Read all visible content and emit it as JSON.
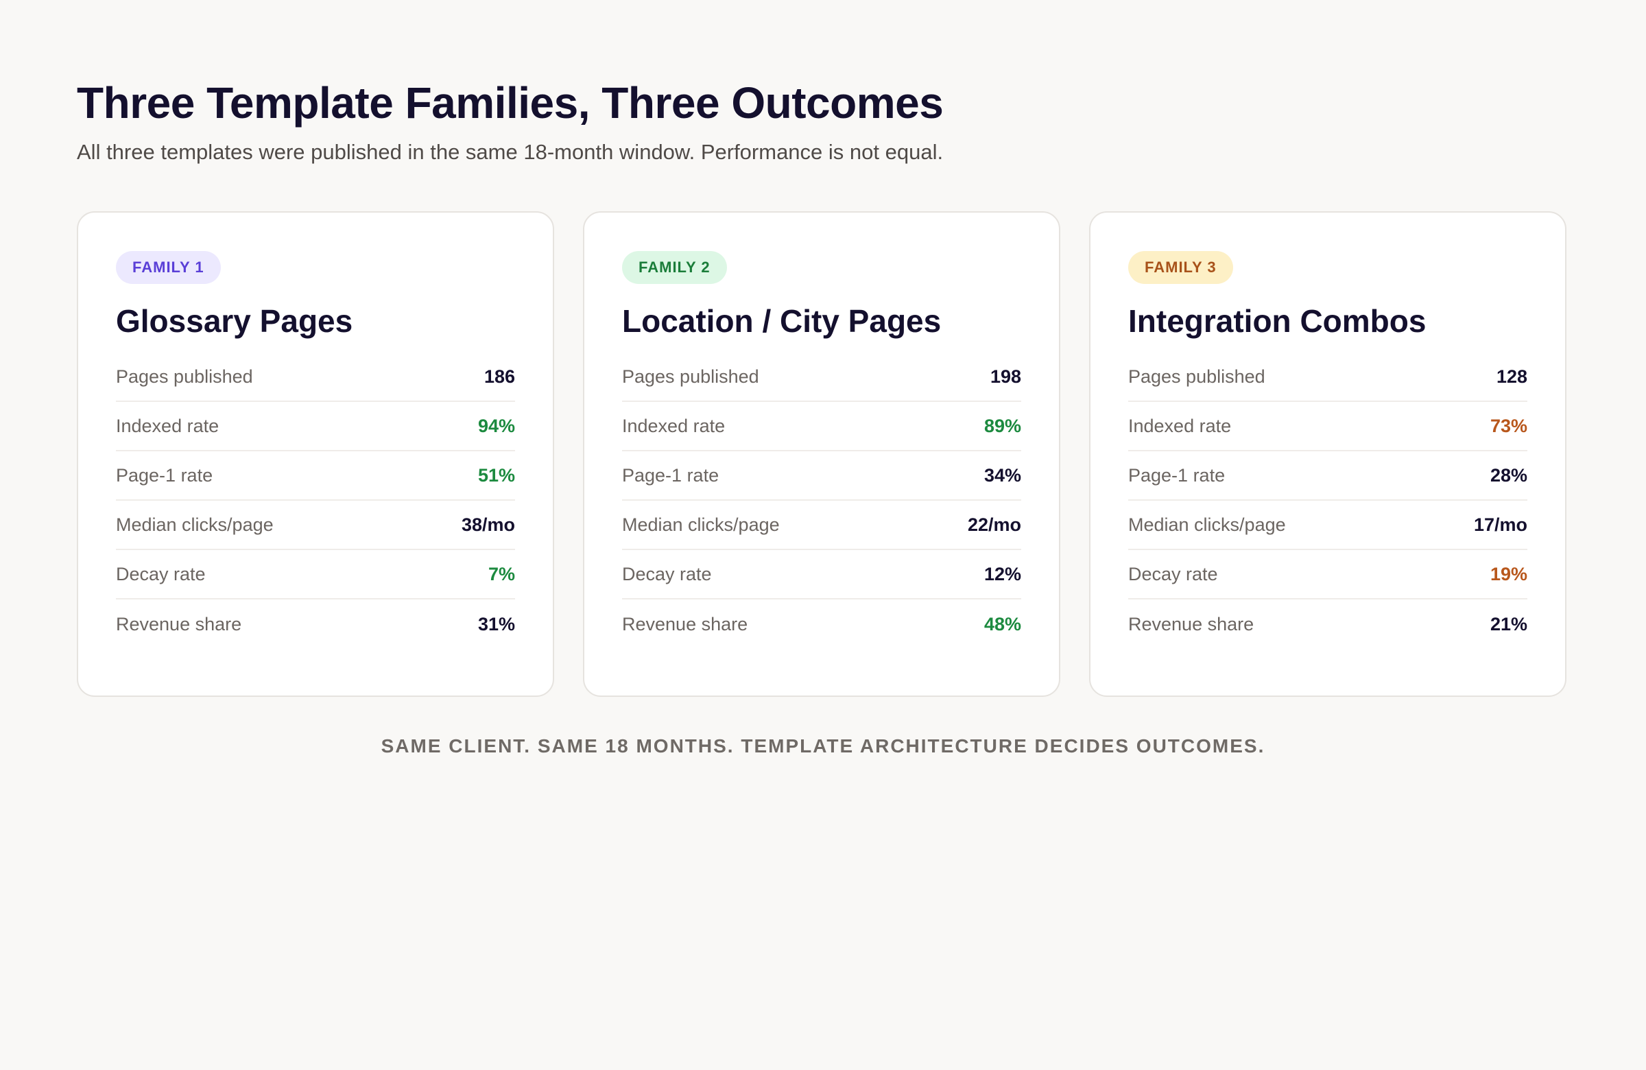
{
  "header": {
    "title": "Three Template Families, Three Outcomes",
    "subtitle": "All three templates were published in the same 18-month window. Performance is not equal."
  },
  "colors": {
    "good": "#1c8a3f",
    "warn": "#b8571c",
    "neutral": "#14102e"
  },
  "families": [
    {
      "badge": "FAMILY 1",
      "title": "Glossary Pages",
      "metrics": [
        {
          "label": "Pages published",
          "value": "186",
          "tone": "neutral"
        },
        {
          "label": "Indexed rate",
          "value": "94%",
          "tone": "good"
        },
        {
          "label": "Page-1 rate",
          "value": "51%",
          "tone": "good"
        },
        {
          "label": "Median clicks/page",
          "value": "38/mo",
          "tone": "neutral"
        },
        {
          "label": "Decay rate",
          "value": "7%",
          "tone": "good"
        },
        {
          "label": "Revenue share",
          "value": "31%",
          "tone": "neutral"
        }
      ]
    },
    {
      "badge": "FAMILY 2",
      "title": "Location / City Pages",
      "metrics": [
        {
          "label": "Pages published",
          "value": "198",
          "tone": "neutral"
        },
        {
          "label": "Indexed rate",
          "value": "89%",
          "tone": "good"
        },
        {
          "label": "Page-1 rate",
          "value": "34%",
          "tone": "neutral"
        },
        {
          "label": "Median clicks/page",
          "value": "22/mo",
          "tone": "neutral"
        },
        {
          "label": "Decay rate",
          "value": "12%",
          "tone": "neutral"
        },
        {
          "label": "Revenue share",
          "value": "48%",
          "tone": "good"
        }
      ]
    },
    {
      "badge": "FAMILY 3",
      "title": "Integration Combos",
      "metrics": [
        {
          "label": "Pages published",
          "value": "128",
          "tone": "neutral"
        },
        {
          "label": "Indexed rate",
          "value": "73%",
          "tone": "warn"
        },
        {
          "label": "Page-1 rate",
          "value": "28%",
          "tone": "neutral"
        },
        {
          "label": "Median clicks/page",
          "value": "17/mo",
          "tone": "neutral"
        },
        {
          "label": "Decay rate",
          "value": "19%",
          "tone": "warn"
        },
        {
          "label": "Revenue share",
          "value": "21%",
          "tone": "neutral"
        }
      ]
    }
  ],
  "footer": {
    "caption": "SAME CLIENT. SAME 18 MONTHS. TEMPLATE ARCHITECTURE DECIDES OUTCOMES."
  }
}
